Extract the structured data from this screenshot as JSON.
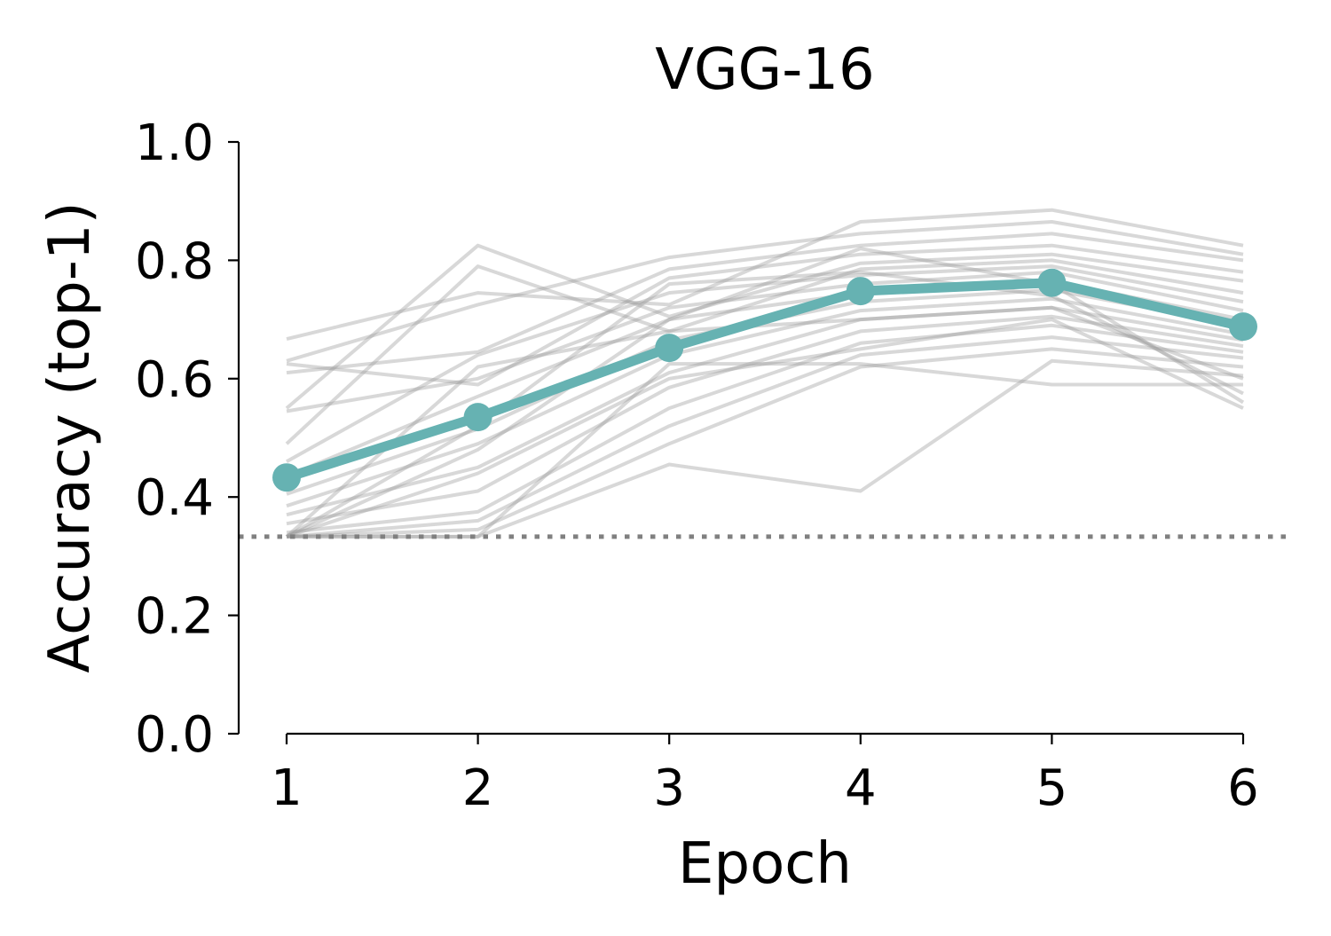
{
  "chart_data": {
    "type": "line",
    "title": "VGG-16",
    "xlabel": "Epoch",
    "ylabel": "Accuracy (top-1)",
    "x": [
      1,
      2,
      3,
      4,
      5,
      6
    ],
    "xlim": [
      0.75,
      6.25
    ],
    "ylim": [
      0,
      1
    ],
    "x_ticks": [
      "1",
      "2",
      "3",
      "4",
      "5",
      "6"
    ],
    "y_ticks": [
      "0.0",
      "0.2",
      "0.4",
      "0.6",
      "0.8",
      "1.0"
    ],
    "grid": false,
    "legend": false,
    "chance_level": 0.333,
    "mean_series": {
      "values": [
        0.433,
        0.535,
        0.652,
        0.748,
        0.762,
        0.688
      ],
      "color": "#66b2b2"
    },
    "individual_series_color": "#999999",
    "individual_series": [
      {
        "values": [
          0.667,
          0.745,
          0.725,
          0.865,
          0.885,
          0.825
        ]
      },
      {
        "values": [
          0.63,
          0.725,
          0.805,
          0.845,
          0.865,
          0.81
        ]
      },
      {
        "values": [
          0.61,
          0.645,
          0.785,
          0.825,
          0.845,
          0.8
        ]
      },
      {
        "values": [
          0.625,
          0.59,
          0.77,
          0.81,
          0.825,
          0.78
        ]
      },
      {
        "values": [
          0.55,
          0.825,
          0.705,
          0.795,
          0.81,
          0.765
        ]
      },
      {
        "values": [
          0.49,
          0.79,
          0.68,
          0.785,
          0.8,
          0.745
        ]
      },
      {
        "values": [
          0.46,
          0.64,
          0.745,
          0.775,
          0.79,
          0.73
        ]
      },
      {
        "values": [
          0.545,
          0.6,
          0.72,
          0.76,
          0.78,
          0.715
        ]
      },
      {
        "values": [
          0.435,
          0.57,
          0.7,
          0.745,
          0.765,
          0.7
        ]
      },
      {
        "values": [
          0.405,
          0.515,
          0.665,
          0.73,
          0.75,
          0.69
        ]
      },
      {
        "values": [
          0.385,
          0.49,
          0.64,
          0.715,
          0.735,
          0.675
        ]
      },
      {
        "values": [
          0.37,
          0.45,
          0.61,
          0.7,
          0.72,
          0.665
        ]
      },
      {
        "values": [
          0.355,
          0.41,
          0.585,
          0.68,
          0.705,
          0.655
        ]
      },
      {
        "values": [
          0.34,
          0.375,
          0.55,
          0.66,
          0.69,
          0.645
        ]
      },
      {
        "values": [
          0.333,
          0.36,
          0.52,
          0.64,
          0.67,
          0.635
        ]
      },
      {
        "values": [
          0.333,
          0.345,
          0.49,
          0.62,
          0.65,
          0.62
        ]
      },
      {
        "values": [
          0.333,
          0.333,
          0.455,
          0.41,
          0.63,
          0.605
        ]
      },
      {
        "values": [
          0.333,
          0.333,
          0.625,
          0.625,
          0.59,
          0.59
        ]
      },
      {
        "values": [
          0.333,
          0.52,
          0.76,
          0.78,
          0.74,
          0.575
        ]
      },
      {
        "values": [
          0.333,
          0.48,
          0.7,
          0.82,
          0.76,
          0.56
        ]
      },
      {
        "values": [
          0.333,
          0.44,
          0.6,
          0.65,
          0.7,
          0.55
        ]
      },
      {
        "values": [
          0.333,
          0.62,
          0.68,
          0.7,
          0.72,
          0.6
        ]
      }
    ]
  }
}
